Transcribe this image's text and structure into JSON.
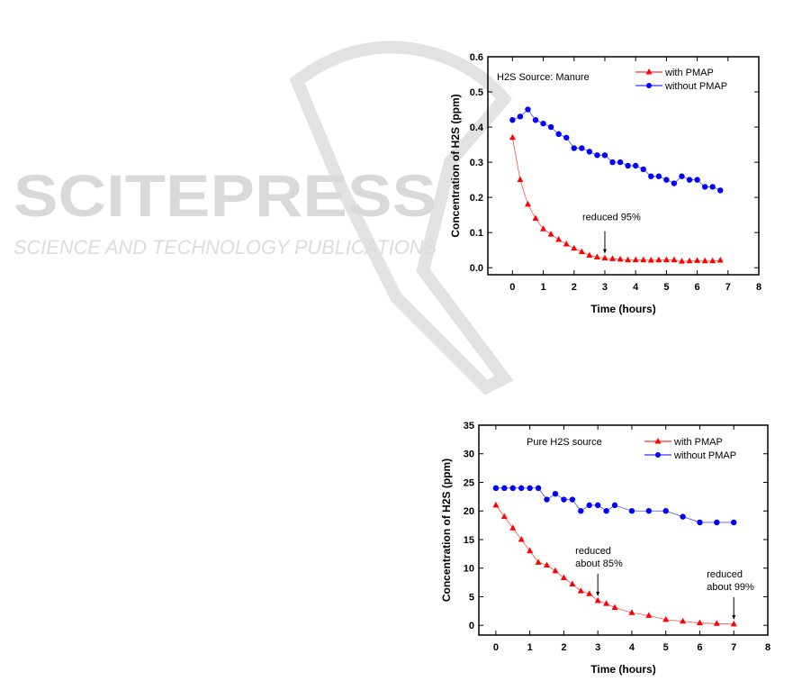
{
  "watermark": {
    "title": "SCITEPRESS",
    "subtitle": "SCIENCE AND TECHNOLOGY PUBLICATIONS"
  },
  "colors": {
    "with": "#ff0000",
    "without": "#0000ff"
  },
  "chart_data": [
    {
      "type": "line",
      "title": "H2S Source: Manure",
      "xlabel": "Time (hours)",
      "ylabel": "Concentration of H2S (ppm)",
      "xlim": [
        -0.8,
        8
      ],
      "ylim": [
        -0.02,
        0.6
      ],
      "xticks": [
        0,
        1,
        2,
        3,
        4,
        5,
        6,
        7,
        8
      ],
      "yticks": [
        0.0,
        0.1,
        0.2,
        0.3,
        0.4,
        0.5,
        0.6
      ],
      "ytick_labels": [
        "0.0",
        "0.1",
        "0.2",
        "0.3",
        "0.4",
        "0.5",
        "0.6"
      ],
      "legend_position": "top-right",
      "annotations": [
        {
          "text": "reduced 95%",
          "x": 3,
          "y": 0.027
        }
      ],
      "series": [
        {
          "name": "with PMAP",
          "marker": "triangle",
          "x": [
            0,
            0.25,
            0.5,
            0.75,
            1,
            1.25,
            1.5,
            1.75,
            2,
            2.25,
            2.5,
            2.75,
            3,
            3.25,
            3.5,
            3.75,
            4,
            4.25,
            4.5,
            4.75,
            5,
            5.25,
            5.5,
            5.75,
            6,
            6.25,
            6.5,
            6.75
          ],
          "values": [
            0.37,
            0.25,
            0.18,
            0.14,
            0.11,
            0.095,
            0.08,
            0.067,
            0.055,
            0.045,
            0.035,
            0.03,
            0.027,
            0.025,
            0.024,
            0.022,
            0.022,
            0.022,
            0.021,
            0.022,
            0.022,
            0.022,
            0.018,
            0.019,
            0.02,
            0.019,
            0.019,
            0.021
          ]
        },
        {
          "name": "without PMAP",
          "marker": "circle",
          "x": [
            0,
            0.25,
            0.5,
            0.75,
            1,
            1.25,
            1.5,
            1.75,
            2,
            2.25,
            2.5,
            2.75,
            3,
            3.25,
            3.5,
            3.75,
            4,
            4.25,
            4.5,
            4.75,
            5,
            5.25,
            5.5,
            5.75,
            6,
            6.25,
            6.5,
            6.75
          ],
          "values": [
            0.42,
            0.43,
            0.45,
            0.42,
            0.41,
            0.4,
            0.38,
            0.37,
            0.34,
            0.34,
            0.33,
            0.32,
            0.32,
            0.3,
            0.3,
            0.29,
            0.29,
            0.28,
            0.26,
            0.26,
            0.25,
            0.24,
            0.26,
            0.25,
            0.25,
            0.23,
            0.23,
            0.22
          ]
        }
      ]
    },
    {
      "type": "line",
      "title": "Pure H2S source",
      "xlabel": "Time  (hours)",
      "ylabel": "Concentration of H2S (ppm)",
      "xlim": [
        -0.5,
        8
      ],
      "ylim": [
        -1.7,
        35
      ],
      "xticks": [
        0,
        1,
        2,
        3,
        4,
        5,
        6,
        7,
        8
      ],
      "yticks": [
        0,
        5,
        10,
        15,
        20,
        25,
        30,
        35
      ],
      "ytick_labels": [
        "0",
        "5",
        "10",
        "15",
        "20",
        "25",
        "30",
        "35"
      ],
      "legend_position": "top-right",
      "annotations": [
        {
          "text": "reduced",
          "text2": "about 85%",
          "x": 3,
          "y": 4.3
        },
        {
          "text": "reduced",
          "text2": "about 99%",
          "x": 7,
          "y": 0.2
        }
      ],
      "series": [
        {
          "name": "with PMAP",
          "marker": "triangle",
          "x": [
            0,
            0.25,
            0.5,
            0.75,
            1,
            1.25,
            1.5,
            1.75,
            2,
            2.25,
            2.5,
            2.75,
            3,
            3.25,
            3.5,
            4,
            4.5,
            5,
            5.5,
            6,
            6.5,
            7
          ],
          "values": [
            21,
            19,
            17,
            15,
            13,
            11,
            10.5,
            9.5,
            8.3,
            7.2,
            6,
            5.5,
            4.3,
            3.8,
            3.1,
            2.2,
            1.7,
            1.0,
            0.7,
            0.4,
            0.3,
            0.2
          ]
        },
        {
          "name": "without PMAP",
          "marker": "circle",
          "x": [
            0,
            0.25,
            0.5,
            0.75,
            1,
            1.25,
            1.5,
            1.75,
            2,
            2.25,
            2.5,
            2.75,
            3,
            3.25,
            3.5,
            4,
            4.5,
            5,
            5.5,
            6,
            6.5,
            7
          ],
          "values": [
            24,
            24,
            24,
            24,
            24,
            24,
            22,
            23,
            22,
            22,
            20,
            21,
            21,
            20,
            21,
            20,
            20,
            20,
            19,
            18,
            18,
            18
          ]
        }
      ]
    }
  ]
}
